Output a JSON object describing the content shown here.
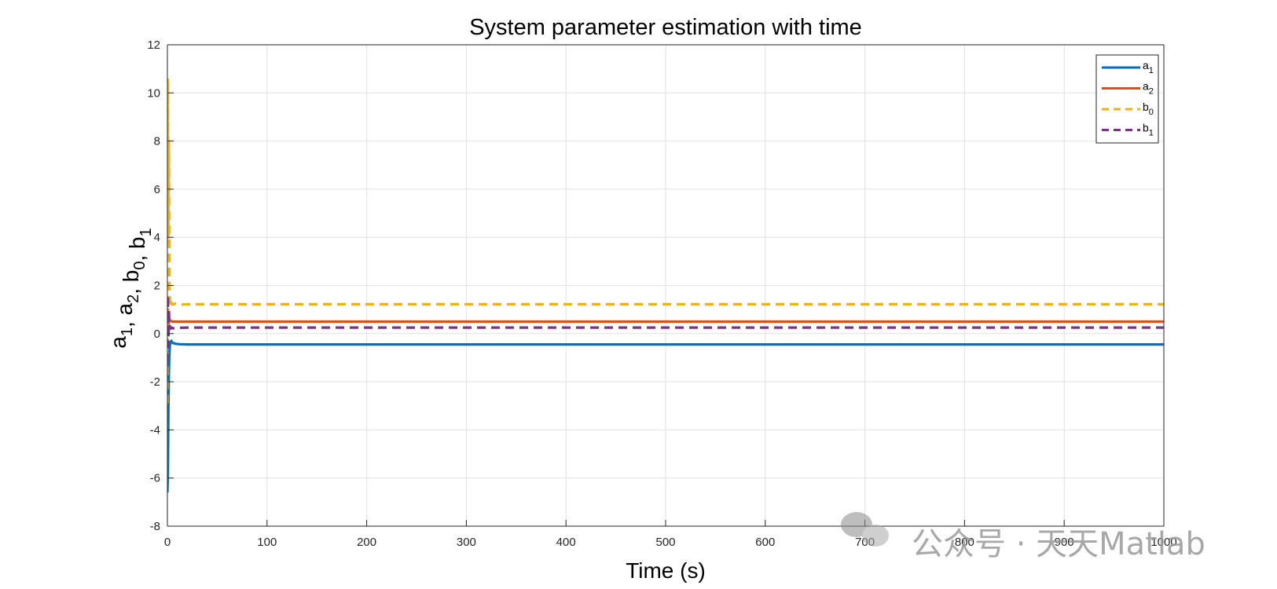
{
  "chart_data": {
    "type": "line",
    "title": "System parameter estimation with time",
    "xlabel": "Time (s)",
    "ylabel": {
      "parts": [
        {
          "t": "a",
          "sub": "1"
        },
        {
          "t": ", a",
          "sub": "2"
        },
        {
          "t": ", b",
          "sub": "0"
        },
        {
          "t": ", b",
          "sub": "1"
        }
      ]
    },
    "xlim": [
      0,
      1000
    ],
    "ylim": [
      -8,
      12
    ],
    "xticks": [
      0,
      100,
      200,
      300,
      400,
      500,
      600,
      700,
      800,
      900,
      1000
    ],
    "yticks": [
      -8,
      -6,
      -4,
      -2,
      0,
      2,
      4,
      6,
      8,
      10,
      12
    ],
    "grid": true,
    "legend_position": "top-right",
    "series": [
      {
        "name": "a",
        "sub": "1",
        "color": "#0072BD",
        "dash": "solid",
        "x": [
          0,
          0.5,
          1,
          1.5,
          2,
          2.5,
          3,
          4,
          5,
          8,
          12,
          20,
          50,
          100,
          1000
        ],
        "y": [
          -6.6,
          -5.8,
          -3.2,
          -1.6,
          -0.8,
          -0.5,
          -0.35,
          -0.3,
          -0.38,
          -0.42,
          -0.44,
          -0.45,
          -0.45,
          -0.45,
          -0.45
        ]
      },
      {
        "name": "a",
        "sub": "2",
        "color": "#D95319",
        "dash": "solid",
        "x": [
          0,
          0.5,
          1,
          1.5,
          2,
          3,
          5,
          8,
          12,
          20,
          50,
          100,
          1000
        ],
        "y": [
          0.0,
          1.0,
          0.3,
          0.6,
          0.5,
          0.55,
          0.5,
          0.5,
          0.5,
          0.5,
          0.5,
          0.5,
          0.5
        ]
      },
      {
        "name": "b",
        "sub": "0",
        "color": "#EDB120",
        "dash": "dashed",
        "x": [
          0,
          0.5,
          1,
          1.5,
          2,
          2.5,
          3,
          4,
          5,
          8,
          12,
          20,
          50,
          100,
          1000
        ],
        "y": [
          -2.9,
          10.6,
          4.0,
          8.0,
          2.0,
          1.4,
          1.1,
          1.3,
          1.2,
          1.25,
          1.2,
          1.22,
          1.22,
          1.22,
          1.22
        ]
      },
      {
        "name": "b",
        "sub": "1",
        "color": "#7E2F8E",
        "dash": "dashed",
        "x": [
          0,
          0.5,
          1,
          1.5,
          2,
          2.5,
          3,
          4,
          6,
          10,
          20,
          50,
          100,
          1000
        ],
        "y": [
          -1.2,
          1.6,
          -0.5,
          1.0,
          0.4,
          0.3,
          0.2,
          0.25,
          0.22,
          0.24,
          0.25,
          0.25,
          0.25,
          0.25
        ]
      }
    ]
  },
  "watermark": {
    "text": "公众号 · 天天Matlab",
    "icon": "wechat-icon"
  }
}
